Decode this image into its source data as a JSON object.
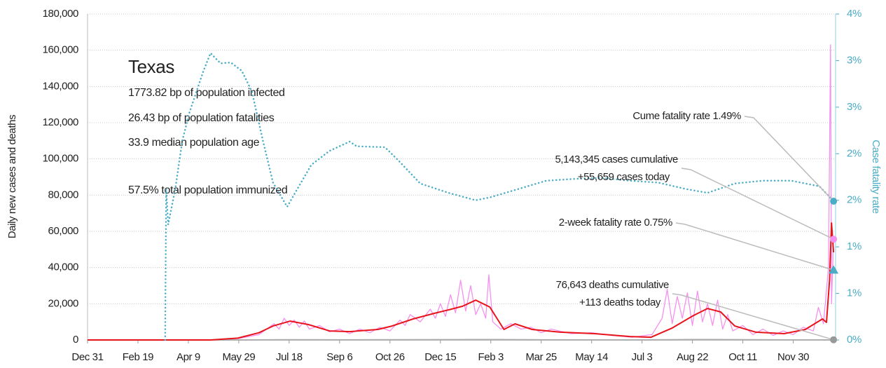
{
  "chart_data": {
    "type": "line",
    "info": {
      "title": "Texas",
      "lines": [
        "1773.82 bp of population infected",
        "26.43 bp of population fatalities",
        "33.9 median population age",
        "57.5% total population immunized"
      ]
    },
    "ylabel": "Daily new cases and deaths",
    "y2label": "Case fatality rate",
    "xlim": [
      0,
      742
    ],
    "xticks": [
      {
        "value": 0,
        "label": "Dec 31"
      },
      {
        "value": 50,
        "label": "Feb 19"
      },
      {
        "value": 100,
        "label": "Apr 9"
      },
      {
        "value": 150,
        "label": "May 29"
      },
      {
        "value": 200,
        "label": "Jul 18"
      },
      {
        "value": 250,
        "label": "Sep 6"
      },
      {
        "value": 300,
        "label": "Oct 26"
      },
      {
        "value": 350,
        "label": "Dec 15"
      },
      {
        "value": 400,
        "label": "Feb 3"
      },
      {
        "value": 450,
        "label": "Mar 25"
      },
      {
        "value": 500,
        "label": "May 14"
      },
      {
        "value": 550,
        "label": "Jul 3"
      },
      {
        "value": 600,
        "label": "Aug 22"
      },
      {
        "value": 650,
        "label": "Oct 11"
      },
      {
        "value": 700,
        "label": "Nov 30"
      }
    ],
    "ylim": [
      0,
      180000
    ],
    "yticks": [
      0,
      {
        "value": 20000,
        "label": "20,000"
      },
      {
        "value": 40000,
        "label": "40,000"
      },
      {
        "value": 60000,
        "label": "60,000"
      },
      {
        "value": 80000,
        "label": "80,000"
      },
      {
        "value": 100000,
        "label": "100,000"
      },
      {
        "value": 120000,
        "label": "120,000"
      },
      {
        "value": 140000,
        "label": "140,000"
      },
      {
        "value": 160000,
        "label": "160,000"
      },
      {
        "value": 180000,
        "label": "180,000"
      }
    ],
    "y2lim": [
      0,
      3.5
    ],
    "y2ticks": [
      {
        "value": 0,
        "label": "0%"
      },
      {
        "value": 0.5,
        "label": "1%"
      },
      {
        "value": 1,
        "label": "1%"
      },
      {
        "value": 1.5,
        "label": "2%"
      },
      {
        "value": 2,
        "label": "2%"
      },
      {
        "value": 2.5,
        "label": "3%"
      },
      {
        "value": 3,
        "label": "3%"
      },
      {
        "value": 3.5,
        "label": "4%"
      }
    ],
    "grid": true,
    "series": [
      {
        "name": "Daily cases",
        "color": "#f590ee",
        "width": 1.3,
        "axis": "y",
        "x": [
          0,
          120,
          150,
          170,
          185,
          190,
          195,
          200,
          205,
          210,
          215,
          220,
          230,
          240,
          250,
          260,
          270,
          280,
          290,
          300,
          310,
          315,
          320,
          330,
          340,
          345,
          350,
          355,
          360,
          365,
          370,
          375,
          380,
          385,
          390,
          395,
          398,
          402,
          410,
          420,
          430,
          440,
          450,
          460,
          480,
          500,
          520,
          540,
          560,
          570,
          575,
          580,
          585,
          590,
          595,
          600,
          605,
          610,
          615,
          620,
          625,
          630,
          635,
          640,
          650,
          660,
          670,
          680,
          690,
          700,
          710,
          720,
          725,
          730,
          735,
          737,
          738,
          740
        ],
        "values": [
          0,
          0,
          800,
          3000,
          9000,
          6000,
          12000,
          8000,
          11000,
          7000,
          10500,
          6000,
          8000,
          4500,
          6000,
          3500,
          6000,
          4000,
          7000,
          5000,
          11000,
          8000,
          14000,
          10000,
          17000,
          12000,
          20000,
          13000,
          25000,
          15000,
          33000,
          16000,
          30000,
          14000,
          20000,
          12000,
          36000,
          10000,
          6000,
          9000,
          6000,
          7000,
          4000,
          6000,
          3500,
          4000,
          2500,
          1500,
          3000,
          12000,
          28000,
          9000,
          24000,
          12000,
          26000,
          8000,
          27000,
          10000,
          20000,
          8000,
          22000,
          6000,
          14000,
          5000,
          8000,
          3000,
          6000,
          2500,
          5000,
          3000,
          7000,
          5000,
          18000,
          9000,
          40000,
          163000,
          20000,
          55659
        ]
      },
      {
        "name": "Deaths",
        "color": "#aaaaaa",
        "width": 1.5,
        "axis": "y",
        "x": [
          0,
          90,
          150,
          200,
          250,
          350,
          400,
          450,
          550,
          600,
          700,
          740
        ],
        "values": [
          0,
          50,
          50,
          200,
          150,
          250,
          300,
          150,
          80,
          300,
          100,
          113
        ]
      },
      {
        "name": "Cases 7-day average",
        "color": "#e8141c",
        "width": 2,
        "axis": "y",
        "x": [
          0,
          122,
          149,
          170,
          184,
          201,
          219,
          240,
          260,
          288,
          302,
          323,
          344,
          358,
          372,
          385,
          399,
          413,
          424,
          441,
          469,
          503,
          538,
          559,
          580,
          601,
          615,
          628,
          642,
          663,
          691,
          712,
          729,
          733,
          736,
          738,
          740
        ],
        "values": [
          0,
          0,
          1000,
          4000,
          7700,
          10400,
          8500,
          5000,
          4600,
          5800,
          7700,
          11600,
          14700,
          16600,
          18600,
          22000,
          18200,
          5800,
          8900,
          5800,
          4300,
          3500,
          1900,
          1500,
          6600,
          13500,
          17400,
          15500,
          7700,
          4300,
          3500,
          5800,
          11600,
          9700,
          33000,
          64600,
          48400
        ]
      },
      {
        "name": "Case fatality rate",
        "color": "#4bacc6",
        "width": 2.5,
        "axis": "y2",
        "dotted": true,
        "x": [
          77,
          78,
          80,
          87,
          94,
          101,
          115,
          122,
          132,
          142,
          153,
          163,
          174,
          184,
          198,
          208,
          222,
          240,
          260,
          267,
          295,
          309,
          330,
          358,
          385,
          399,
          427,
          455,
          483,
          510,
          538,
          566,
          594,
          615,
          642,
          670,
          698,
          726,
          740
        ],
        "values": [
          0,
          1.62,
          1.24,
          1.62,
          2.14,
          2.44,
          2.89,
          3.08,
          2.97,
          2.98,
          2.89,
          2.67,
          2.14,
          1.69,
          1.43,
          1.62,
          1.88,
          2.03,
          2.13,
          2.08,
          2.07,
          1.92,
          1.68,
          1.58,
          1.5,
          1.53,
          1.62,
          1.71,
          1.73,
          1.74,
          1.71,
          1.69,
          1.62,
          1.58,
          1.68,
          1.71,
          1.71,
          1.65,
          1.49
        ]
      }
    ],
    "markers": [
      {
        "x": 740,
        "value": 1.49,
        "axis": "y2",
        "shape": "circle",
        "color": "#4bacc6"
      },
      {
        "x": 740,
        "value": 55659,
        "axis": "y",
        "shape": "circle",
        "color": "#f590ee"
      },
      {
        "x": 740,
        "value": 0.75,
        "axis": "y2",
        "shape": "triangle",
        "color": "#4bacc6"
      },
      {
        "x": 740,
        "value": 113,
        "axis": "y",
        "shape": "circle",
        "color": "#999999"
      }
    ],
    "annotations": [
      {
        "lines": [
          "Cume fatality rate 1.49%"
        ]
      },
      {
        "lines": [
          "5,143,345 cases cumulative",
          "+55,659 cases today"
        ]
      },
      {
        "lines": [
          "2-week fatality rate 0.75%"
        ]
      },
      {
        "lines": [
          "76,643 deaths cumulative",
          "+113 deaths today"
        ]
      }
    ]
  }
}
